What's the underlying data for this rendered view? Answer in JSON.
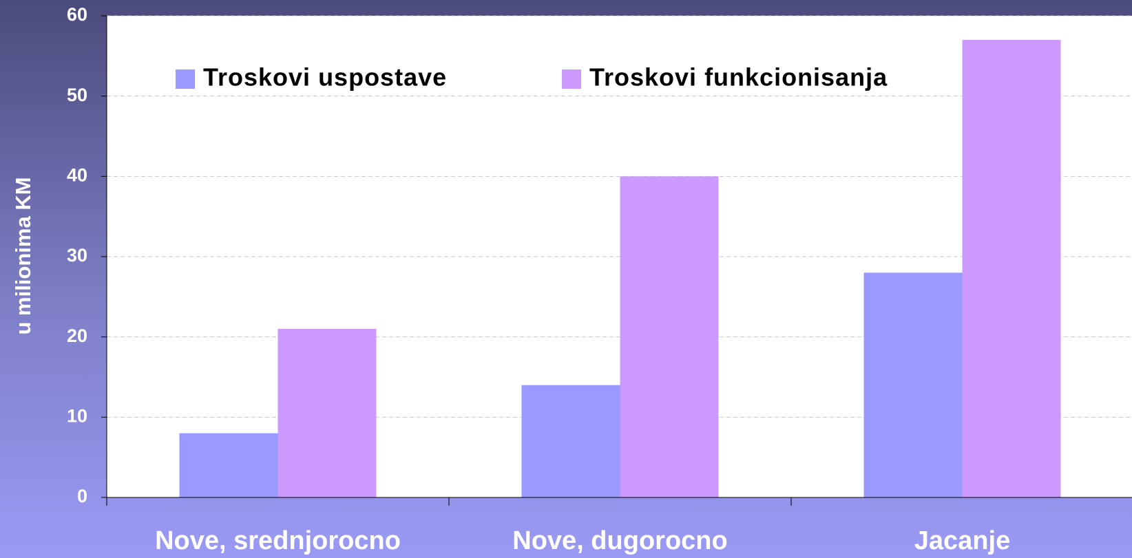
{
  "chart_data": {
    "type": "bar",
    "y_label": "u milionima KM",
    "categories": [
      "Nove, srednjorocno",
      "Nove, dugorocno",
      "Jacanje"
    ],
    "series": [
      {
        "name": "Troskovi uspostave",
        "color": "#9999ff",
        "values": [
          8,
          14,
          28
        ]
      },
      {
        "name": "Troskovi funkcionisanja",
        "color": "#cc99ff",
        "values": [
          21,
          40,
          57
        ]
      }
    ],
    "ylim": [
      0,
      60
    ],
    "yticks": [
      0,
      10,
      20,
      30,
      40,
      50,
      60
    ],
    "grid": true
  }
}
